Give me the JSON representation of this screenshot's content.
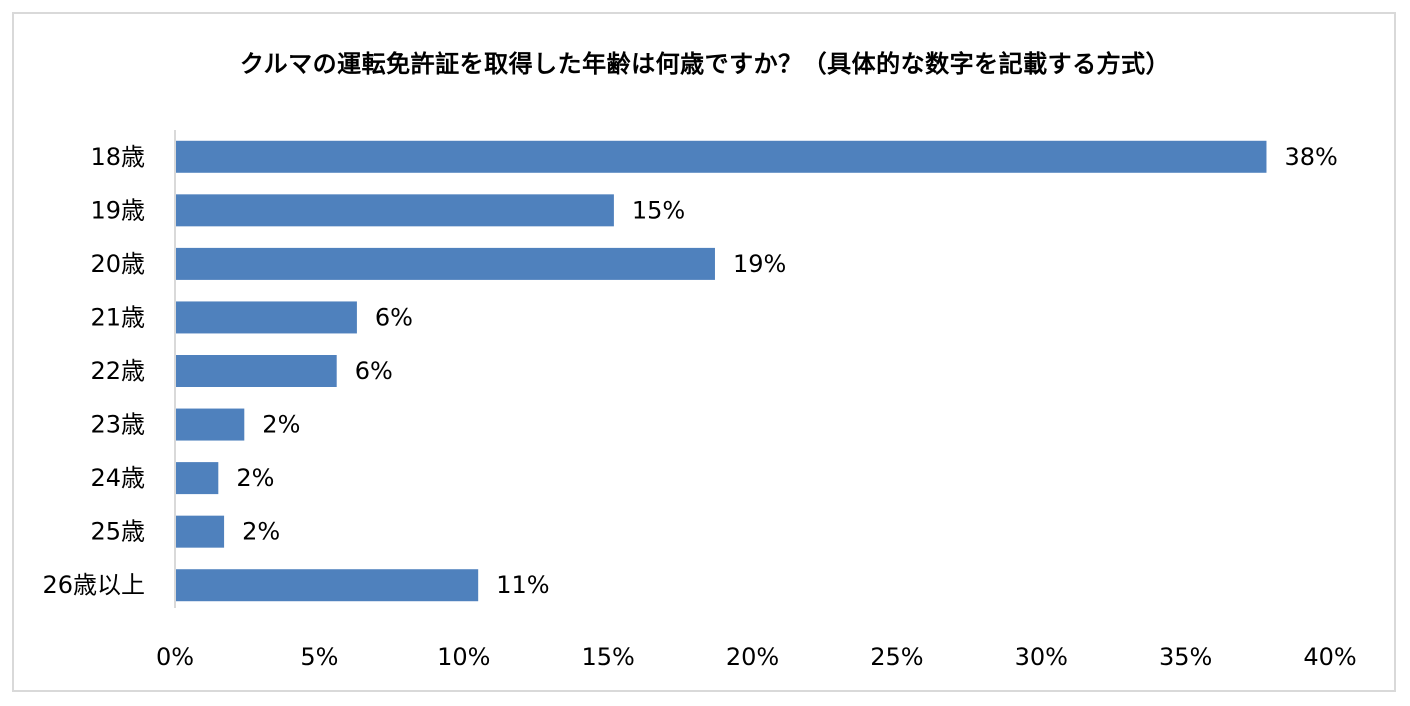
{
  "chart_data": {
    "type": "bar",
    "orientation": "horizontal",
    "title": "クルマの運転免許証を取得した年齢は何歳ですか？（具体的な数字を記載する方式）",
    "categories": [
      "18歳",
      "19歳",
      "20歳",
      "21歳",
      "22歳",
      "23歳",
      "24歳",
      "25歳",
      "26歳以上"
    ],
    "values": [
      37.8,
      15.2,
      18.7,
      6.3,
      5.6,
      2.4,
      1.5,
      1.7,
      10.5
    ],
    "data_labels": [
      "38%",
      "15%",
      "19%",
      "6%",
      "6%",
      "2%",
      "2%",
      "2%",
      "11%"
    ],
    "xlim": [
      0,
      40
    ],
    "x_ticks": [
      0,
      5,
      10,
      15,
      20,
      25,
      30,
      35,
      40
    ],
    "x_tick_labels": [
      "0%",
      "5%",
      "10%",
      "15%",
      "20%",
      "25%",
      "30%",
      "35%",
      "40%"
    ],
    "xlabel": "",
    "ylabel": "",
    "grid": false,
    "legend": "none",
    "bar_color": "#4f81bd"
  }
}
